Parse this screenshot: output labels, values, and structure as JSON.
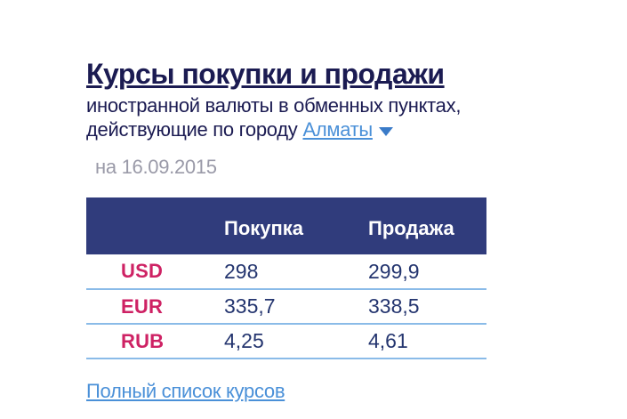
{
  "page": {
    "title": "Курсы покупки и продажи",
    "subtitle_line1": "иностранной валюты в обменных пунктах,",
    "subtitle_line2": "действующие по городу",
    "city_link": "Алматы",
    "date": "на 16.09.2015",
    "footer_link": "Полный список курсов"
  },
  "table": {
    "columns": [
      "Покупка",
      "Продажа"
    ],
    "rows": [
      {
        "currency": "USD",
        "buy": "298",
        "sell": "299,9"
      },
      {
        "currency": "EUR",
        "buy": "335,7",
        "sell": "338,5"
      },
      {
        "currency": "RUB",
        "buy": "4,25",
        "sell": "4,61"
      }
    ]
  },
  "icons": {
    "city_dropdown": "chevron-down-icon"
  },
  "colors": {
    "title_navy": "#1b1b52",
    "header_bg": "#303c7c",
    "header_text": "#ffffff",
    "currency_red": "#ce2264",
    "value_navy": "#24356f",
    "separator_blue": "#8abbe8",
    "link_blue": "#4a90d8",
    "date_gray": "#9a9aa8",
    "background": "#ffffff"
  }
}
